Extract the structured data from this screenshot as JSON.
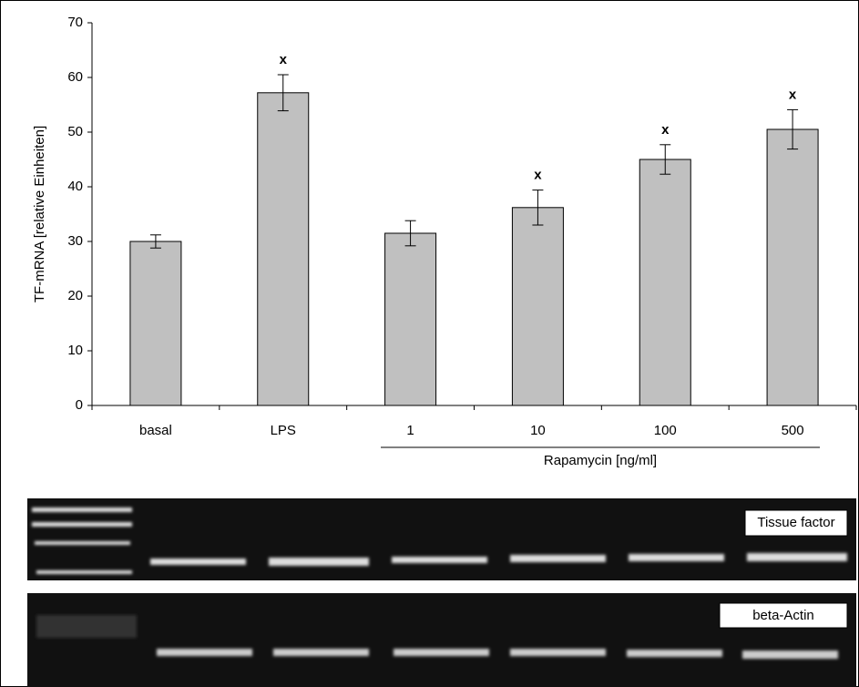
{
  "chart_data": {
    "type": "bar",
    "y_label": "TF-mRNA [relative Einheiten]",
    "categories": [
      "basal",
      "LPS",
      "1",
      "10",
      "100",
      "500"
    ],
    "values": [
      30,
      57.2,
      31.5,
      36.2,
      45,
      50.5
    ],
    "errors": [
      1.2,
      3.3,
      2.3,
      3.2,
      2.7,
      3.6
    ],
    "annotations": [
      null,
      "x",
      null,
      "x",
      "x",
      "x"
    ],
    "group_label": "Rapamycin [ng/ml]",
    "color": "#c0c0c0",
    "ylim": [
      0,
      70
    ],
    "yticks": [
      0,
      10,
      20,
      30,
      40,
      50,
      60,
      70
    ]
  },
  "gels": [
    {
      "label": "Tissue factor"
    },
    {
      "label": "beta-Actin"
    }
  ]
}
